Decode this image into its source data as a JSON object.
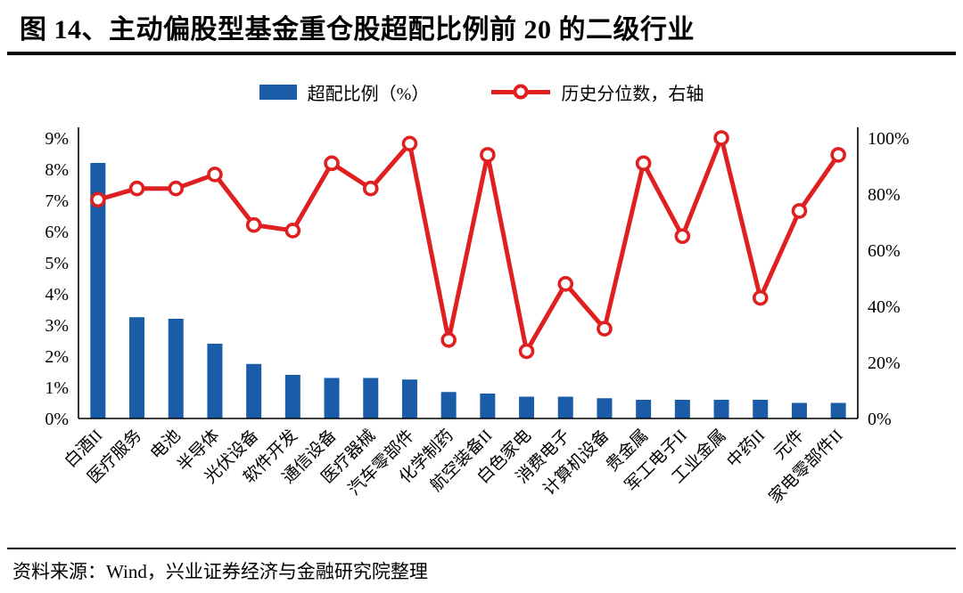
{
  "title": "图 14、主动偏股型基金重仓股超配比例前 20 的二级行业",
  "source": "资料来源：Wind，兴业证券经济与金融研究院整理",
  "legend": {
    "bar_label": "超配比例（%）",
    "line_label": "历史分位数，右轴"
  },
  "colors": {
    "bar": "#1A5CA8",
    "line": "#E02020",
    "axis": "#000000"
  },
  "chart_data": {
    "type": "bar",
    "subtype": "bar+line-dual-axis",
    "title": "主动偏股型基金重仓股超配比例前 20 的二级行业",
    "grid": false,
    "legend_position": "top",
    "categories": [
      "白酒II",
      "医疗服务",
      "电池",
      "半导体",
      "光伏设备",
      "软件开发",
      "通信设备",
      "医疗器械",
      "汽车零部件",
      "化学制药",
      "航空装备II",
      "白色家电",
      "消费电子",
      "计算机设备",
      "贵金属",
      "军工电子II",
      "工业金属",
      "中药II",
      "元件",
      "家电零部件II"
    ],
    "series": [
      {
        "name": "超配比例（%）",
        "type": "bar",
        "axis": "left",
        "values": [
          8.2,
          3.25,
          3.2,
          2.4,
          1.75,
          1.4,
          1.3,
          1.3,
          1.25,
          0.85,
          0.8,
          0.7,
          0.7,
          0.65,
          0.6,
          0.6,
          0.6,
          0.6,
          0.5,
          0.5
        ]
      },
      {
        "name": "历史分位数，右轴",
        "type": "line",
        "axis": "right",
        "values": [
          78,
          82,
          82,
          87,
          69,
          67,
          91,
          82,
          98,
          28,
          94,
          24,
          48,
          32,
          91,
          65,
          100,
          43,
          74,
          94
        ]
      }
    ],
    "left_axis": {
      "min": 0,
      "max": 9,
      "step": 1,
      "suffix": "%",
      "tick_labels": [
        "0%",
        "1%",
        "2%",
        "3%",
        "4%",
        "5%",
        "6%",
        "7%",
        "8%",
        "9%"
      ]
    },
    "right_axis": {
      "min": 0,
      "max": 100,
      "step": 20,
      "suffix": "%",
      "tick_labels": [
        "0%",
        "20%",
        "40%",
        "60%",
        "80%",
        "100%"
      ]
    }
  }
}
